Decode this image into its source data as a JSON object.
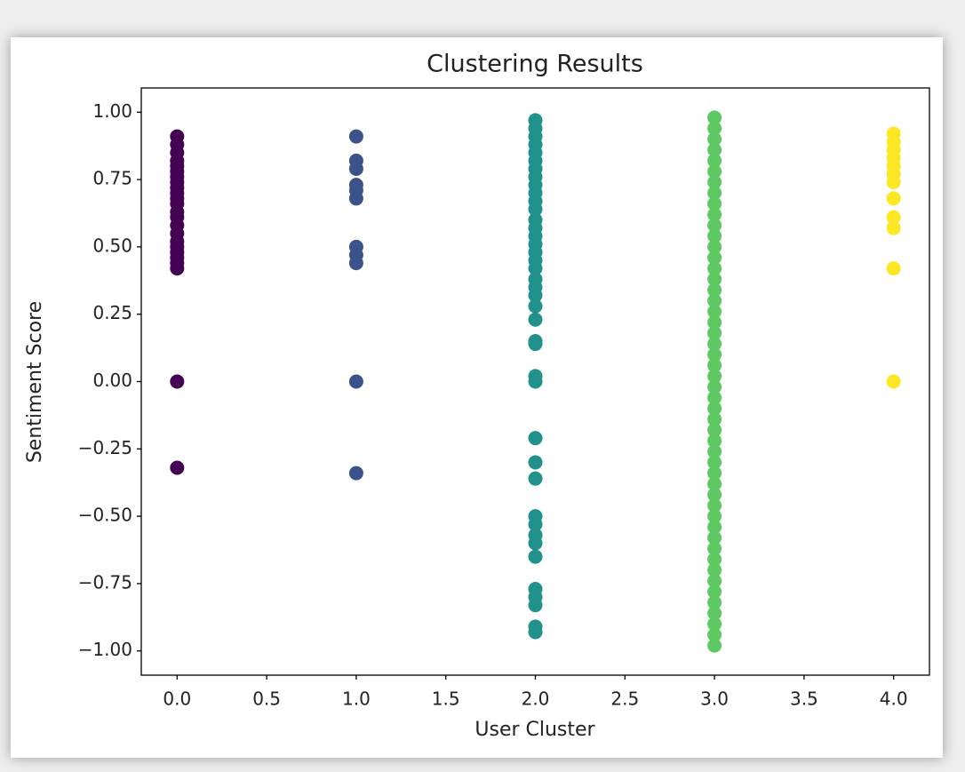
{
  "chart_data": {
    "type": "scatter",
    "title": "Clustering Results",
    "x_label": "User Cluster",
    "y_label": "Sentiment Score",
    "xlim": [
      -0.2,
      4.2
    ],
    "ylim": [
      -1.09,
      1.09
    ],
    "xticks": [
      {
        "value": 0,
        "label": "0.0"
      },
      0.5,
      {
        "value": 1,
        "label": "1.0"
      },
      1.5,
      {
        "value": 2,
        "label": "2.0"
      },
      2.5,
      {
        "value": 3,
        "label": "3.0"
      },
      3.5,
      {
        "value": 4,
        "label": "4.0"
      }
    ],
    "yticks": [
      {
        "value": 1,
        "label": "1.00"
      },
      0.75,
      {
        "value": 0.5,
        "label": "0.50"
      },
      0.25,
      {
        "value": 0,
        "label": "0.00"
      },
      {
        "value": -0.25,
        "label": "−0.25"
      },
      {
        "value": -0.5,
        "label": "−0.50"
      },
      {
        "value": -0.75,
        "label": "−0.75"
      },
      {
        "value": -1,
        "label": "−1.00"
      }
    ],
    "grid": false,
    "series": [
      {
        "color": "#440154",
        "x": [
          0,
          0,
          0,
          0,
          0,
          0,
          0,
          0,
          0,
          0,
          0,
          0,
          0,
          0,
          0,
          0,
          0,
          0,
          0,
          0,
          0,
          0,
          0,
          0
        ],
        "values": [
          0.91,
          0.88,
          0.85,
          0.82,
          0.8,
          0.78,
          0.76,
          0.74,
          0.72,
          0.7,
          0.68,
          0.66,
          0.63,
          0.61,
          0.58,
          0.55,
          0.52,
          0.5,
          0.48,
          0.46,
          0.44,
          0.42,
          0,
          -0.32
        ]
      },
      {
        "color": "#3b528b",
        "x": [
          1,
          1,
          1,
          1,
          1,
          1,
          1,
          1,
          1,
          1,
          1
        ],
        "values": [
          0.91,
          0.82,
          0.79,
          0.73,
          0.71,
          0.68,
          0.5,
          0.47,
          0.44,
          0,
          -0.34
        ]
      },
      {
        "color": "#21918c",
        "x": [
          2,
          2,
          2,
          2,
          2,
          2,
          2,
          2,
          2,
          2,
          2,
          2,
          2,
          2,
          2,
          2,
          2,
          2,
          2,
          2,
          2,
          2,
          2,
          2,
          2,
          2,
          2,
          2,
          2,
          2,
          2,
          2,
          2,
          2,
          2,
          2,
          2,
          2,
          2,
          2,
          2
        ],
        "values": [
          0.97,
          0.94,
          0.91,
          0.88,
          0.85,
          0.82,
          0.79,
          0.76,
          0.73,
          0.7,
          0.67,
          0.64,
          0.6,
          0.57,
          0.54,
          0.51,
          0.48,
          0.45,
          0.42,
          0.38,
          0.35,
          0.32,
          0.28,
          0.23,
          0.15,
          0.14,
          0.02,
          0,
          -0.21,
          -0.3,
          -0.36,
          -0.5,
          -0.53,
          -0.57,
          -0.6,
          -0.65,
          -0.77,
          -0.8,
          -0.83,
          -0.91,
          -0.93
        ]
      },
      {
        "color": "#5ec962",
        "x": [
          3,
          3,
          3,
          3,
          3,
          3,
          3,
          3,
          3,
          3,
          3,
          3,
          3,
          3,
          3,
          3,
          3,
          3,
          3,
          3,
          3,
          3,
          3,
          3,
          3,
          3,
          3,
          3,
          3,
          3,
          3,
          3,
          3,
          3,
          3,
          3,
          3,
          3,
          3,
          3,
          3,
          3,
          3,
          3,
          3,
          3,
          3,
          3,
          3,
          3
        ],
        "values": [
          0.98,
          0.94,
          0.9,
          0.86,
          0.82,
          0.78,
          0.74,
          0.7,
          0.66,
          0.62,
          0.58,
          0.54,
          0.5,
          0.46,
          0.42,
          0.38,
          0.34,
          0.3,
          0.26,
          0.22,
          0.18,
          0.14,
          0.1,
          0.06,
          0.02,
          -0.02,
          -0.06,
          -0.1,
          -0.14,
          -0.18,
          -0.22,
          -0.26,
          -0.3,
          -0.34,
          -0.38,
          -0.42,
          -0.46,
          -0.5,
          -0.54,
          -0.58,
          -0.62,
          -0.66,
          -0.7,
          -0.74,
          -0.78,
          -0.82,
          -0.86,
          -0.9,
          -0.94,
          -0.98
        ]
      },
      {
        "color": "#fde725",
        "x": [
          4,
          4,
          4,
          4,
          4,
          4,
          4,
          4,
          4,
          4,
          4,
          4
        ],
        "values": [
          0.92,
          0.89,
          0.86,
          0.83,
          0.8,
          0.77,
          0.74,
          0.68,
          0.61,
          0.57,
          0.42,
          0
        ]
      }
    ]
  }
}
